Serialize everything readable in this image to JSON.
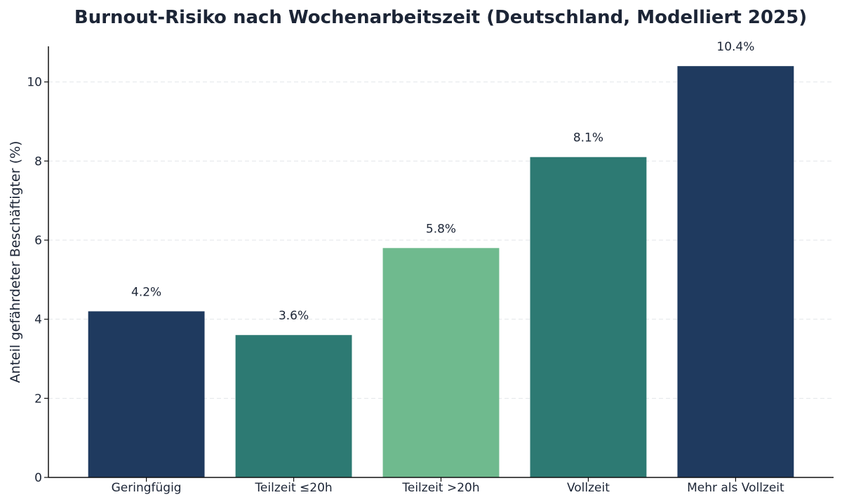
{
  "chart_data": {
    "type": "bar",
    "title": "Burnout-Risiko nach Wochenarbeitszeit (Deutschland, Modelliert 2025)",
    "xlabel": "",
    "ylabel": "Anteil gefährdeter Beschäftigter (%)",
    "categories": [
      "Geringfügig",
      "Teilzeit ≤20h",
      "Teilzeit >20h",
      "Vollzeit",
      "Mehr als Vollzeit"
    ],
    "values": [
      4.2,
      3.6,
      5.8,
      8.1,
      10.4
    ],
    "data_labels": [
      "4.2%",
      "3.6%",
      "5.8%",
      "8.1%",
      "10.4%"
    ],
    "colors": [
      "#1f3a5f",
      "#2d7a73",
      "#6fba8e",
      "#2d7a73",
      "#1f3a5f"
    ],
    "ylim": [
      0,
      10.9
    ],
    "yticks": [
      0,
      2,
      4,
      6,
      8,
      10
    ],
    "grid": true,
    "legend": "none"
  }
}
